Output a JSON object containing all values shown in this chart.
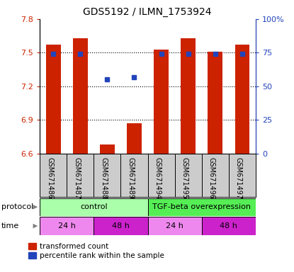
{
  "title": "GDS5192 / ILMN_1753924",
  "samples": [
    "GSM671486",
    "GSM671487",
    "GSM671488",
    "GSM671489",
    "GSM671494",
    "GSM671495",
    "GSM671496",
    "GSM671497"
  ],
  "bar_values": [
    7.57,
    7.63,
    6.68,
    6.87,
    7.53,
    7.63,
    7.51,
    7.57
  ],
  "blue_values": [
    74,
    74,
    55,
    57,
    74,
    74,
    74,
    74
  ],
  "ylim_left": [
    6.6,
    7.8
  ],
  "ylim_right": [
    0,
    100
  ],
  "yticks_left": [
    6.6,
    6.9,
    7.2,
    7.5,
    7.8
  ],
  "yticks_right": [
    0,
    25,
    50,
    75,
    100
  ],
  "ytick_labels_right": [
    "0",
    "25",
    "50",
    "75",
    "100%"
  ],
  "bar_color": "#cc2200",
  "blue_color": "#2244bb",
  "protocol_labels": [
    "control",
    "TGF-beta overexpression"
  ],
  "protocol_colors": [
    "#aaffaa",
    "#55ee55"
  ],
  "time_labels": [
    "24 h",
    "48 h",
    "24 h",
    "48 h"
  ],
  "time_colors_light": "#ee88ee",
  "time_colors_dark": "#cc22cc",
  "legend_items": [
    "transformed count",
    "percentile rank within the sample"
  ],
  "legend_colors": [
    "#cc2200",
    "#2244bb"
  ],
  "background_color": "#ffffff",
  "sample_bg_color": "#cccccc",
  "title_fontsize": 10,
  "axis_fontsize": 8,
  "label_fontsize": 8
}
